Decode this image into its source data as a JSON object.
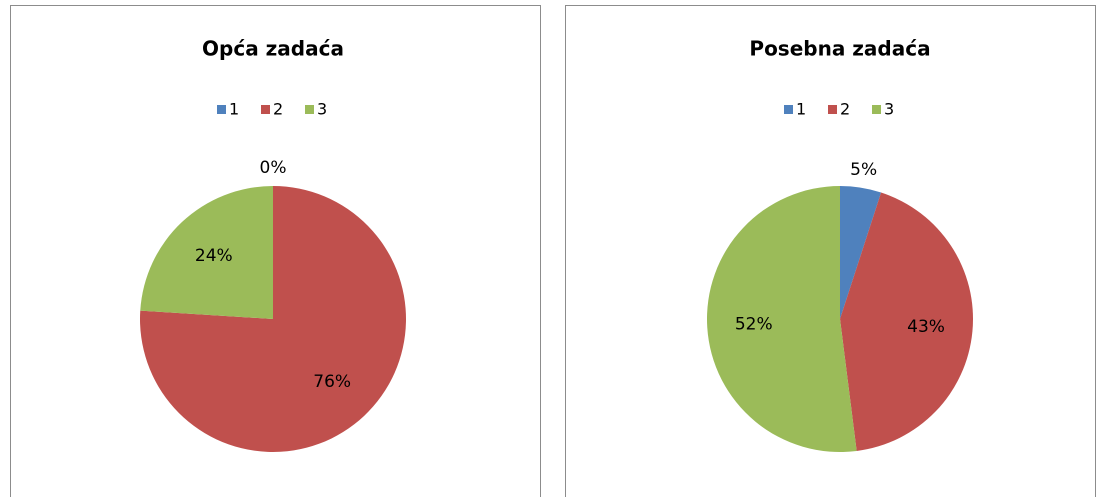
{
  "chart_data": [
    {
      "type": "pie",
      "title": "Opća zadaća",
      "categories": [
        "1",
        "2",
        "3"
      ],
      "values": [
        0,
        76,
        24
      ],
      "value_labels": [
        "0%",
        "76%",
        "24%"
      ],
      "colors": [
        "#4f81bd",
        "#c0504d",
        "#9bbb59"
      ],
      "legend": "top"
    },
    {
      "type": "pie",
      "title": "Posebna zadaća",
      "categories": [
        "1",
        "2",
        "3"
      ],
      "values": [
        5,
        43,
        52
      ],
      "value_labels": [
        "5%",
        "43%",
        "52%"
      ],
      "colors": [
        "#4f81bd",
        "#c0504d",
        "#9bbb59"
      ],
      "legend": "top"
    }
  ]
}
